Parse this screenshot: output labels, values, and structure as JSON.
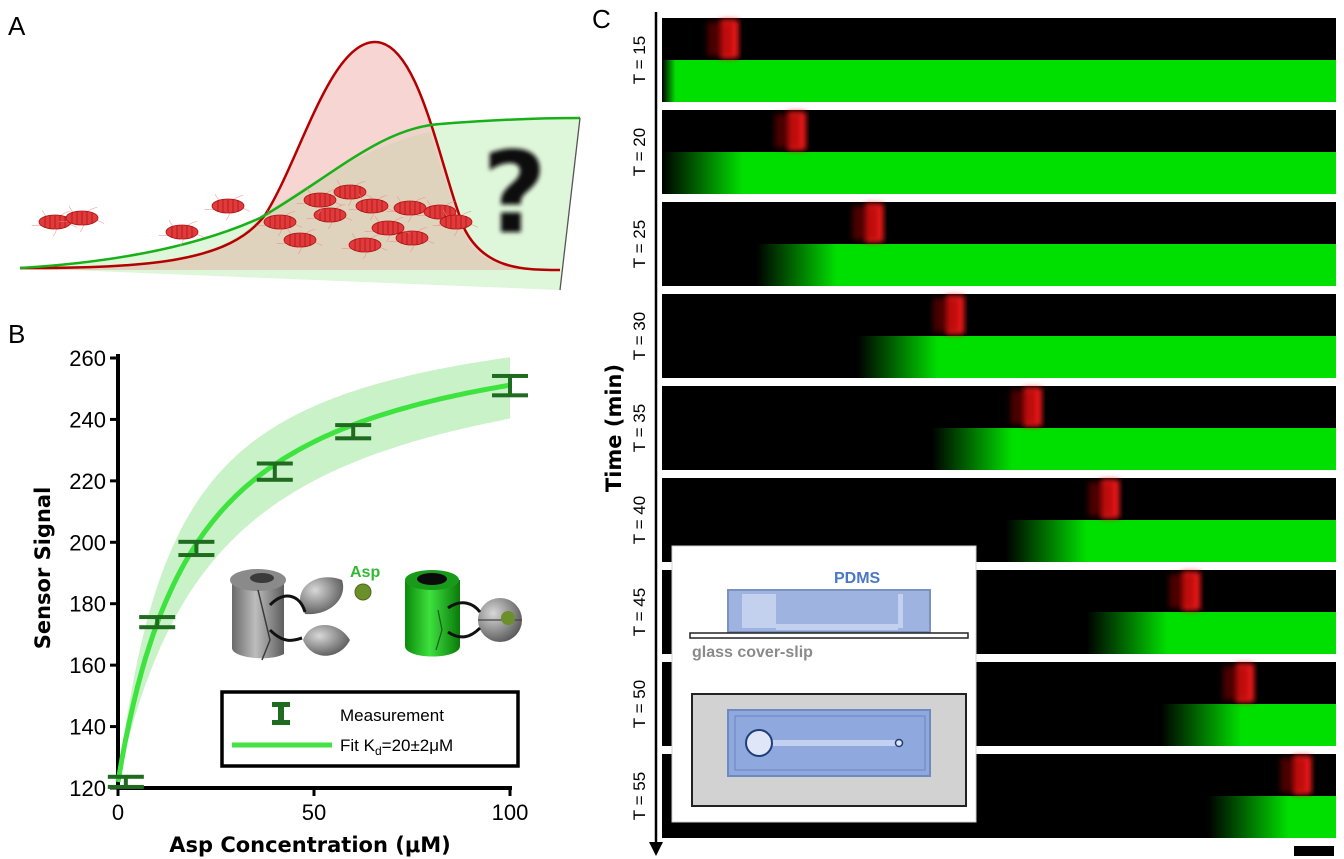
{
  "panels": {
    "a_label": "A",
    "b_label": "B",
    "c_label": "C"
  },
  "panel_a": {
    "question_mark": "?",
    "colors": {
      "density": "#c00000",
      "gradient": "#20b020",
      "cells": "#e03030"
    }
  },
  "panel_b": {
    "ylabel": "Sensor Signal",
    "xlabel": "Asp Concentration (μM)",
    "asp_label": "Asp",
    "legend": {
      "measurement": "Measurement",
      "fit_prefix": "Fit K",
      "fit_sub": "d",
      "fit_suffix": "=20±2μM"
    }
  },
  "panel_c": {
    "ylabel": "Time (min)",
    "time_labels": [
      "T = 15",
      "T = 20",
      "T = 25",
      "T = 30",
      "T = 35",
      "T = 40",
      "T = 45",
      "T = 50",
      "T = 55"
    ],
    "band_peak_fraction": [
      0.1,
      0.2,
      0.315,
      0.435,
      0.55,
      0.665,
      0.785,
      0.865,
      0.95
    ],
    "gradient_front_fraction": [
      0.02,
      0.12,
      0.26,
      0.41,
      0.52,
      0.63,
      0.75,
      0.86,
      0.93
    ],
    "inset": {
      "pdms_label": "PDMS",
      "glass_label": "glass cover-slip"
    },
    "colors": {
      "band": "#ff1a1a",
      "gradient": "#00e000",
      "background": "#000000"
    }
  },
  "chart_data": {
    "type": "scatter",
    "title": "",
    "xlabel": "Asp Concentration (μM)",
    "ylabel": "Sensor Signal",
    "xlim": [
      0,
      100
    ],
    "ylim": [
      120,
      260
    ],
    "xticks": [
      0,
      50,
      100
    ],
    "yticks": [
      120,
      140,
      160,
      180,
      200,
      220,
      240,
      260
    ],
    "series": [
      {
        "name": "Measurement",
        "x": [
          2,
          10,
          20,
          40,
          60,
          100
        ],
        "y": [
          122,
          174,
          198,
          223,
          236,
          251
        ],
        "err": [
          1,
          1,
          1.5,
          2,
          1.5,
          2.5
        ]
      },
      {
        "name": "Fit Kd=20±2μM",
        "kd": 20,
        "baseline": 122,
        "span": 155
      }
    ]
  }
}
